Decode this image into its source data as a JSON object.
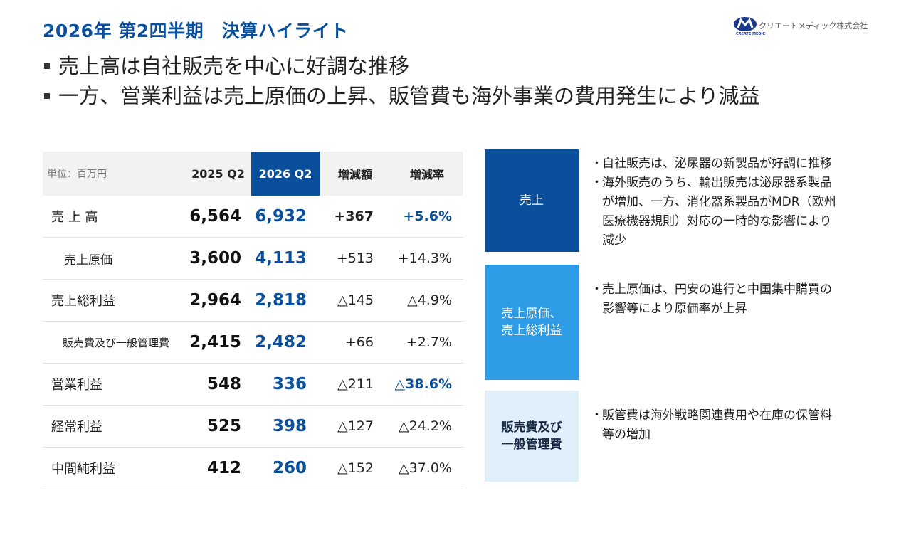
{
  "header": {
    "title": "2026年 第2四半期　決算ハイライト",
    "logo_text": "クリエートメディック株式会社",
    "logo_sub": "CREATE MEDIC"
  },
  "bullets": [
    "売上高は自社販売を中心に好調な推移",
    "一方、営業利益は売上原価の上昇、販管費も海外事業の費用発生により減益"
  ],
  "table": {
    "unit": "単位：百万円",
    "col_2025": "2025 Q2",
    "col_2026": "2026 Q2",
    "col_diff": "増減額",
    "col_rate": "増減率",
    "rows": [
      {
        "label": "売 上 高",
        "v2025": "6,564",
        "v2026": "6,932",
        "diff": "+367",
        "rate": "+5.6%"
      },
      {
        "label": "売上原価",
        "v2025": "3,600",
        "v2026": "4,113",
        "diff": "+513",
        "rate": "+14.3%"
      },
      {
        "label": "売上総利益",
        "v2025": "2,964",
        "v2026": "2,818",
        "diff": "△145",
        "rate": "△4.9%"
      },
      {
        "label": "販売費及び一般管理費",
        "v2025": "2,415",
        "v2026": "2,482",
        "diff": "+66",
        "rate": "+2.7%"
      },
      {
        "label": "営業利益",
        "v2025": "548",
        "v2026": "336",
        "diff": "△211",
        "rate": "△38.6%"
      },
      {
        "label": "経常利益",
        "v2025": "525",
        "v2026": "398",
        "diff": "△127",
        "rate": "△24.2%"
      },
      {
        "label": "中間純利益",
        "v2025": "412",
        "v2026": "260",
        "diff": "△152",
        "rate": "△37.0%"
      }
    ]
  },
  "side": {
    "box1": "売上",
    "box2_l1": "売上原価、",
    "box2_l2": "売上総利益",
    "box3_l1": "販売費及び",
    "box3_l2": "一般管理費",
    "bullet_mark": "・",
    "note1a": "自社販売は、泌尿器の新製品が好調に推移",
    "note1b": "海外販売のうち、輸出販売は泌尿器系製品\nが増加、一方、消化器系製品がMDR（欧州\n医療機器規則）対応の一時的な影響により\n減少",
    "note2": "売上原価は、円安の進行と中国集中購買の\n影響等により原価率が上昇",
    "note3": "販管費は海外戦略関連費用や在庫の保管料\n等の増加"
  },
  "colors": {
    "brand": "#0a4f9c",
    "mid": "#2e9be6",
    "light": "#dff0fb"
  }
}
